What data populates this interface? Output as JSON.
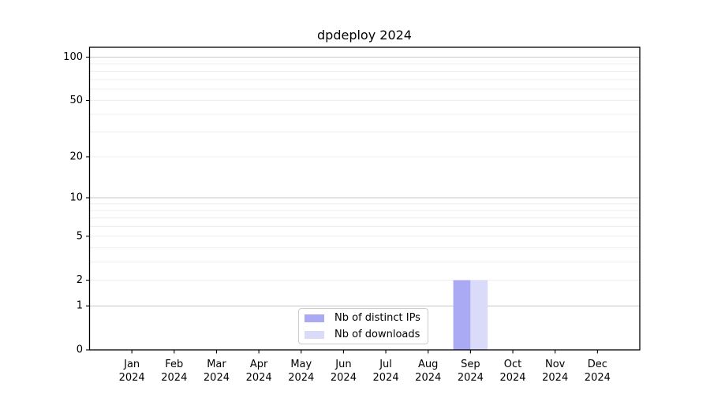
{
  "figure": {
    "background": "#ffffff"
  },
  "chart_data": {
    "type": "bar",
    "title": "dpdeploy 2024",
    "categories": [
      "Jan",
      "Feb",
      "Mar",
      "Apr",
      "May",
      "Jun",
      "Jul",
      "Aug",
      "Sep",
      "Oct",
      "Nov",
      "Dec"
    ],
    "x_tick_year": "2024",
    "series": [
      {
        "name": "Nb of distinct IPs",
        "color": "#a9a9f4",
        "values": [
          0,
          0,
          0,
          0,
          0,
          0,
          0,
          0,
          2,
          0,
          0,
          0
        ]
      },
      {
        "name": "Nb of downloads",
        "color": "#dadaf9",
        "values": [
          0,
          0,
          0,
          0,
          0,
          0,
          0,
          0,
          2,
          0,
          0,
          0
        ]
      }
    ],
    "y_scale": "log1p",
    "y_ticks": [
      0,
      1,
      2,
      5,
      10,
      20,
      50,
      100
    ],
    "y_major_gridlines": [
      1,
      10,
      100
    ],
    "y_minor_gridlines": [
      2,
      3,
      4,
      5,
      6,
      7,
      8,
      9,
      20,
      30,
      40,
      50,
      60,
      70,
      80,
      90
    ],
    "ylim": [
      0,
      117
    ],
    "grid": "horizontal",
    "legend_position": "lower center inside axes",
    "colors": {
      "axis": "#000000",
      "text": "#000000",
      "major_grid": "#c8c8c8",
      "minor_grid": "#ececec"
    }
  }
}
